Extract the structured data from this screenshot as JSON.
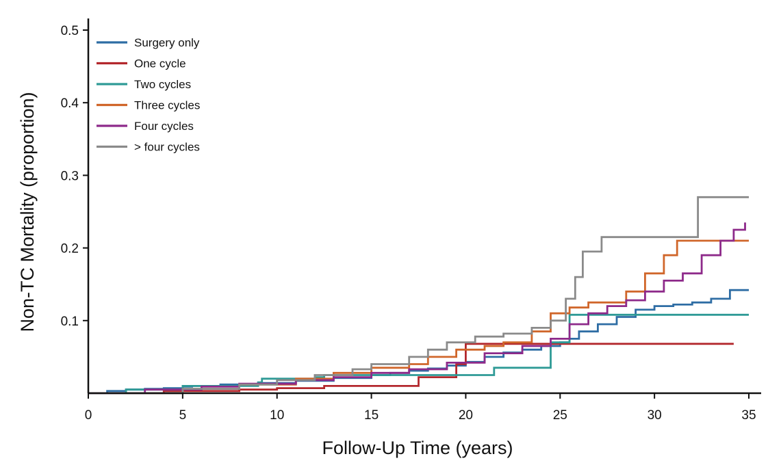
{
  "chart_data": {
    "type": "line",
    "subtype": "step",
    "xlabel": "Follow-Up Time (years)",
    "ylabel": "Non-TC Mortality (proportion)",
    "xlim": [
      0,
      35
    ],
    "ylim": [
      0,
      0.5
    ],
    "xticks": [
      0,
      5,
      10,
      15,
      20,
      25,
      30,
      35
    ],
    "xtick_labels": [
      "0",
      "5",
      "10",
      "15",
      "20",
      "25",
      "30",
      "35"
    ],
    "yticks": [
      0.1,
      0.2,
      0.3,
      0.4,
      0.5
    ],
    "ytick_labels": [
      "0.1",
      "0.2",
      "0.3",
      "0.4",
      "0.5"
    ],
    "grid": false,
    "legend_position": "top-left",
    "series": [
      {
        "name": "Surgery only",
        "color": "#2e6da4",
        "x": [
          0,
          1,
          2,
          3,
          4,
          5,
          5.5,
          7,
          9,
          11,
          13,
          15,
          16,
          17,
          18,
          19,
          20,
          21,
          22,
          23,
          24,
          25,
          25.5,
          26,
          27,
          28,
          29,
          30,
          31,
          32,
          33,
          34,
          35
        ],
        "y": [
          0,
          0.003,
          0.005,
          0.006,
          0.007,
          0.009,
          0.01,
          0.012,
          0.014,
          0.017,
          0.021,
          0.025,
          0.028,
          0.031,
          0.034,
          0.038,
          0.043,
          0.05,
          0.056,
          0.06,
          0.065,
          0.07,
          0.075,
          0.085,
          0.095,
          0.105,
          0.115,
          0.12,
          0.122,
          0.125,
          0.13,
          0.142,
          0.142
        ]
      },
      {
        "name": "One cycle",
        "color": "#b3282d",
        "x": [
          0,
          4,
          8,
          10,
          12.5,
          17.5,
          19.5,
          20,
          34.2
        ],
        "y": [
          0,
          0.003,
          0.005,
          0.007,
          0.01,
          0.022,
          0.04,
          0.068,
          0.068
        ]
      },
      {
        "name": "Two cycles",
        "color": "#2e9a96",
        "x": [
          0,
          2,
          5,
          9,
          9.2,
          12,
          12.5,
          18,
          21.5,
          24.5,
          25.5,
          35
        ],
        "y": [
          0,
          0.005,
          0.01,
          0.015,
          0.02,
          0.022,
          0.025,
          0.025,
          0.035,
          0.07,
          0.108,
          0.108
        ]
      },
      {
        "name": "Three cycles",
        "color": "#d0662a",
        "x": [
          0,
          5,
          8,
          11,
          13,
          15,
          17,
          18,
          19.5,
          21,
          22,
          23.5,
          24.5,
          25.5,
          26.5,
          28.5,
          29.5,
          30.5,
          31.2,
          35
        ],
        "y": [
          0,
          0.006,
          0.012,
          0.02,
          0.028,
          0.035,
          0.04,
          0.05,
          0.06,
          0.065,
          0.07,
          0.085,
          0.11,
          0.118,
          0.125,
          0.14,
          0.165,
          0.19,
          0.21,
          0.21
        ]
      },
      {
        "name": "Four cycles",
        "color": "#8e2a8a",
        "x": [
          0,
          3,
          6,
          8,
          11,
          13,
          15,
          17,
          19,
          21,
          23,
          24.5,
          25.5,
          26.5,
          27.5,
          28.5,
          29.5,
          30.5,
          31.5,
          32.5,
          33.5,
          34.2,
          34.8
        ],
        "y": [
          0,
          0.005,
          0.009,
          0.013,
          0.018,
          0.022,
          0.028,
          0.033,
          0.042,
          0.055,
          0.065,
          0.075,
          0.095,
          0.11,
          0.12,
          0.128,
          0.14,
          0.155,
          0.165,
          0.19,
          0.21,
          0.225,
          0.235
        ]
      },
      {
        "name": "> four cycles",
        "color": "#8a8a8a",
        "x": [
          0,
          5,
          8,
          10,
          12,
          14,
          15,
          17,
          18,
          19,
          20.5,
          22,
          23.5,
          24.5,
          25.3,
          25.8,
          26.2,
          27.2,
          32.3,
          35
        ],
        "y": [
          0,
          0.006,
          0.012,
          0.018,
          0.025,
          0.033,
          0.04,
          0.05,
          0.06,
          0.07,
          0.078,
          0.082,
          0.09,
          0.1,
          0.13,
          0.16,
          0.195,
          0.215,
          0.27,
          0.27
        ]
      }
    ]
  }
}
